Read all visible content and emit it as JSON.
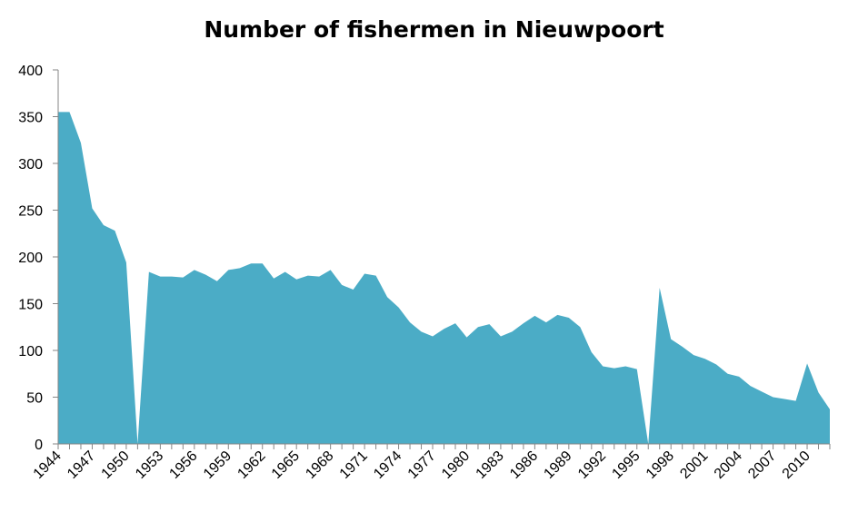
{
  "chart_data": {
    "type": "area",
    "title": "Number of fishermen in Nieuwpoort",
    "xlabel": "",
    "ylabel": "",
    "ylim": [
      0,
      400
    ],
    "yticks": [
      0,
      50,
      100,
      150,
      200,
      250,
      300,
      350,
      400
    ],
    "xtick_labels": [
      "1944",
      "1947",
      "1950",
      "1953",
      "1956",
      "1959",
      "1962",
      "1965",
      "1968",
      "1971",
      "1974",
      "1977",
      "1980",
      "1983",
      "1986",
      "1989",
      "1992",
      "1995",
      "1998",
      "2001",
      "2004",
      "2007",
      "2010"
    ],
    "grid": false,
    "legend": "none",
    "color": "#4BACC6",
    "x": [
      1944,
      1945,
      1946,
      1947,
      1948,
      1949,
      1950,
      1951,
      1952,
      1953,
      1954,
      1955,
      1956,
      1957,
      1958,
      1959,
      1960,
      1961,
      1962,
      1963,
      1964,
      1965,
      1966,
      1967,
      1968,
      1969,
      1970,
      1971,
      1972,
      1973,
      1974,
      1975,
      1976,
      1977,
      1978,
      1979,
      1980,
      1981,
      1982,
      1983,
      1984,
      1985,
      1986,
      1987,
      1988,
      1989,
      1990,
      1991,
      1992,
      1993,
      1994,
      1995,
      1996,
      1997,
      1998,
      1999,
      2000,
      2001,
      2002,
      2003,
      2004,
      2005,
      2006,
      2007,
      2008,
      2009,
      2010,
      2011,
      2012
    ],
    "values": [
      355,
      355,
      322,
      252,
      234,
      228,
      194,
      0,
      184,
      179,
      179,
      178,
      186,
      181,
      174,
      186,
      188,
      193,
      193,
      177,
      184,
      176,
      180,
      179,
      186,
      170,
      165,
      182,
      180,
      157,
      146,
      130,
      120,
      115,
      123,
      129,
      114,
      125,
      128,
      115,
      120,
      129,
      137,
      130,
      138,
      135,
      125,
      98,
      83,
      81,
      83,
      80,
      0,
      167,
      112,
      104,
      95,
      91,
      85,
      75,
      72,
      62,
      56,
      50,
      48,
      46,
      86,
      55,
      37
    ]
  }
}
